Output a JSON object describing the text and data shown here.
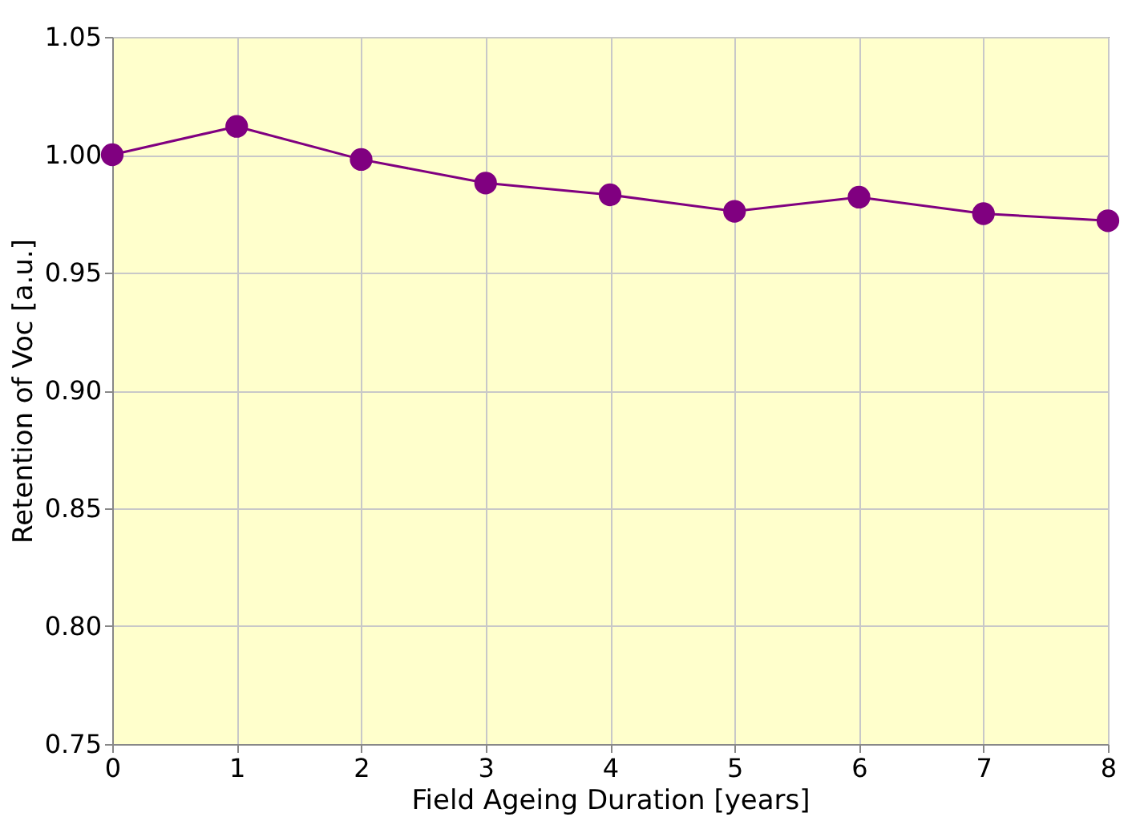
{
  "chart_data": {
    "type": "line",
    "xlabel": "Field Ageing Duration [years]",
    "ylabel": "Retention of Voc [a.u.]",
    "x": [
      0,
      1,
      2,
      3,
      4,
      5,
      6,
      7,
      8
    ],
    "series": [
      {
        "color": "#800080",
        "values": [
          1.0,
          1.012,
          0.998,
          0.988,
          0.983,
          0.976,
          0.982,
          0.975,
          0.972
        ]
      }
    ],
    "xlim": [
      0,
      8
    ],
    "xticks": [
      0,
      1,
      2,
      3,
      4,
      5,
      6,
      7,
      8
    ],
    "ylim": [
      0.75,
      1.05
    ],
    "yticks": [
      0.75,
      {
        "value": 0.8,
        "label": "0.80"
      },
      0.85,
      {
        "value": 0.9,
        "label": "0.90"
      },
      0.95,
      {
        "value": 1.0,
        "label": "1.00"
      },
      1.05
    ],
    "grid": true,
    "marker": "circle",
    "line_style": "solid"
  }
}
